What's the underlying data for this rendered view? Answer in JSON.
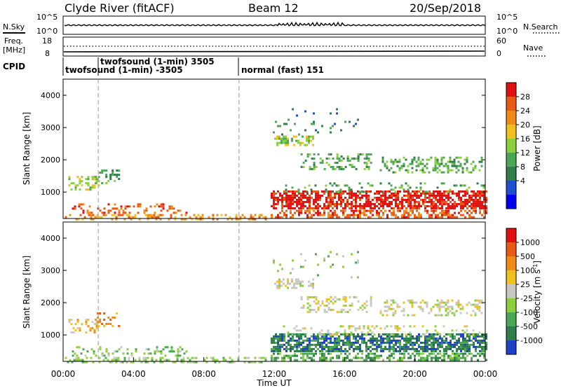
{
  "header": {
    "station": "Clyde River (fitACF)",
    "beam": "Beam 12",
    "date": "20/Sep/2018"
  },
  "noise_panel": {
    "left_label": "N.Sky",
    "left_ticks": [
      "10^5",
      "10^0"
    ],
    "right_ticks": [
      "10^5",
      "10^0"
    ],
    "right_label": "N.Search"
  },
  "freq_panel": {
    "left_label_1": "Freq.",
    "left_label_2": "[MHz]",
    "left_ticks": [
      "18",
      "8"
    ],
    "right_ticks": [
      "60",
      "0"
    ],
    "right_label": "Nave"
  },
  "cpid": {
    "label": "CPID",
    "items": [
      {
        "text": "twofsound (1-min) -3505"
      },
      {
        "text": "twofsound (1-min) 3505"
      },
      {
        "text": "normal (fast) 151"
      }
    ]
  },
  "chart_data": [
    {
      "type": "heatmap",
      "name": "power",
      "ylabel": "Slant Range [km]",
      "ylim": [
        180,
        4500
      ],
      "xlim_hours": [
        0,
        24
      ],
      "yticks": [
        "4000",
        "3000",
        "2000",
        "1000"
      ],
      "colorbar": {
        "label": "Power [dB]",
        "ticks": [
          "28",
          "24",
          "20",
          "16",
          "12",
          "8",
          "4"
        ],
        "colors": [
          "#0000ee",
          "#1d4fcf",
          "#2e7d4a",
          "#4aa852",
          "#8ccf3c",
          "#f2c01c",
          "#f08a18",
          "#e85a14",
          "#e01010"
        ]
      }
    },
    {
      "type": "heatmap",
      "name": "velocity",
      "ylabel": "Slant Range [km]",
      "ylim": [
        180,
        4500
      ],
      "xlim_hours": [
        0,
        24
      ],
      "yticks": [
        "4000",
        "3000",
        "2000",
        "1000"
      ],
      "xlabel": "Time UT",
      "xticks": [
        "00:00",
        "04:00",
        "08:00",
        "12:00",
        "16:00",
        "20:00",
        "00:00"
      ],
      "colorbar": {
        "label": "Velocity [m s^-1]",
        "ticks": [
          "1000",
          "500",
          "100",
          "25",
          "-25",
          "-100",
          "-500",
          "-1000"
        ],
        "colors": [
          "#2040c8",
          "#2e7d4a",
          "#4aa852",
          "#8ccf3c",
          "#c8c8c0",
          "#f2c01c",
          "#f08a18",
          "#e85a14",
          "#e01010"
        ]
      }
    }
  ]
}
